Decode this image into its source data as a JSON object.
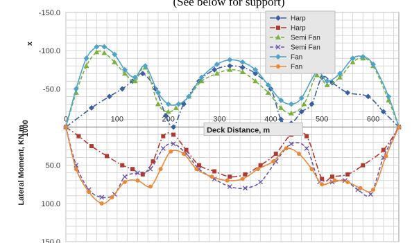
{
  "top_caption": "(See below for support)",
  "chart_data": {
    "type": "line",
    "title": "",
    "xlabel": "Deck Distance,  m",
    "ylabel": "Lateral Moment, KN.m",
    "ylabel_top": "x",
    "ylabel_scale": "1000",
    "xlim": [
      0,
      650
    ],
    "ylim": [
      -150,
      150
    ],
    "y_inverted": true,
    "x_ticks": [
      0,
      100,
      200,
      300,
      400,
      500,
      600
    ],
    "x_tick_labels": [
      "0",
      "100",
      "200",
      "300",
      "400",
      "500",
      "600"
    ],
    "y_ticks": [
      -150,
      -100,
      -50,
      50,
      100,
      150
    ],
    "y_tick_labels": [
      "-150.0",
      "-100.0",
      "-50.0",
      "50.0",
      "100.0",
      "150.0"
    ],
    "grid": true,
    "legend_position": "top-right",
    "series": [
      {
        "name": "Harp",
        "color": "#3b5fa0",
        "marker": "diamond",
        "dash": "8,3,2,3",
        "x": [
          0,
          50,
          85,
          110,
          130,
          150,
          175,
          195,
          210,
          230,
          260,
          290,
          320,
          345,
          370,
          400,
          420,
          440,
          460,
          480,
          500,
          520,
          550,
          590,
          620,
          650
        ],
        "y": [
          0,
          -25,
          -40,
          -50,
          -60,
          -70,
          -50,
          -15,
          0,
          -30,
          -60,
          -75,
          -80,
          -78,
          -70,
          -50,
          -10,
          -5,
          -20,
          -30,
          -65,
          -58,
          -45,
          -40,
          -20,
          0
        ]
      },
      {
        "name": "Harp",
        "color": "#b03a32",
        "marker": "square",
        "dash": "8,3,2,3",
        "x": [
          0,
          25,
          50,
          80,
          110,
          130,
          150,
          170,
          190,
          210,
          235,
          260,
          290,
          320,
          350,
          380,
          410,
          440,
          470,
          500,
          520,
          550,
          580,
          620,
          650
        ],
        "y": [
          0,
          12,
          25,
          38,
          50,
          55,
          62,
          45,
          12,
          10,
          30,
          50,
          58,
          65,
          62,
          50,
          35,
          10,
          12,
          68,
          65,
          62,
          50,
          30,
          0
        ]
      },
      {
        "name": "Semi Fan",
        "color": "#7ab03c",
        "marker": "triangle",
        "dash": "5,3",
        "x": [
          0,
          20,
          40,
          60,
          75,
          95,
          115,
          135,
          155,
          180,
          200,
          215,
          240,
          265,
          295,
          320,
          345,
          370,
          395,
          420,
          440,
          465,
          490,
          510,
          535,
          560,
          580,
          600,
          630,
          650
        ],
        "y": [
          0,
          -45,
          -80,
          -98,
          -97,
          -85,
          -70,
          -60,
          -78,
          -30,
          -20,
          -25,
          -40,
          -60,
          -70,
          -75,
          -72,
          -60,
          -45,
          -25,
          -18,
          -30,
          -68,
          -55,
          -65,
          -85,
          -90,
          -80,
          -35,
          0
        ]
      },
      {
        "name": "Semi Fan",
        "color": "#6a58a8",
        "marker": "cross",
        "dash": "5,3",
        "x": [
          0,
          20,
          45,
          70,
          95,
          115,
          140,
          165,
          190,
          210,
          235,
          260,
          290,
          320,
          350,
          380,
          410,
          440,
          470,
          495,
          520,
          545,
          570,
          595,
          620,
          650
        ],
        "y": [
          0,
          50,
          82,
          92,
          88,
          65,
          60,
          55,
          28,
          22,
          35,
          55,
          68,
          78,
          80,
          72,
          45,
          22,
          28,
          72,
          72,
          70,
          82,
          88,
          40,
          0
        ]
      },
      {
        "name": "Fan",
        "color": "#4fa3c6",
        "marker": "diamond",
        "dash": "",
        "x": [
          0,
          20,
          40,
          60,
          75,
          95,
          115,
          135,
          155,
          180,
          200,
          220,
          240,
          265,
          295,
          320,
          345,
          370,
          395,
          420,
          440,
          460,
          490,
          510,
          535,
          560,
          580,
          600,
          630,
          650
        ],
        "y": [
          0,
          -50,
          -90,
          -105,
          -105,
          -95,
          -75,
          -65,
          -80,
          -45,
          -30,
          -30,
          -40,
          -65,
          -82,
          -88,
          -85,
          -75,
          -55,
          -35,
          -30,
          -38,
          -72,
          -60,
          -70,
          -90,
          -92,
          -82,
          -40,
          0
        ]
      },
      {
        "name": "Fan",
        "color": "#e8893a",
        "marker": "circle",
        "dash": "",
        "x": [
          0,
          20,
          45,
          70,
          90,
          115,
          140,
          165,
          185,
          205,
          230,
          255,
          285,
          315,
          345,
          375,
          405,
          430,
          455,
          480,
          500,
          525,
          550,
          575,
          600,
          625,
          650
        ],
        "y": [
          0,
          55,
          85,
          100,
          92,
          72,
          70,
          78,
          55,
          32,
          35,
          55,
          65,
          70,
          68,
          55,
          45,
          28,
          35,
          55,
          75,
          70,
          72,
          80,
          82,
          38,
          0
        ]
      }
    ]
  }
}
